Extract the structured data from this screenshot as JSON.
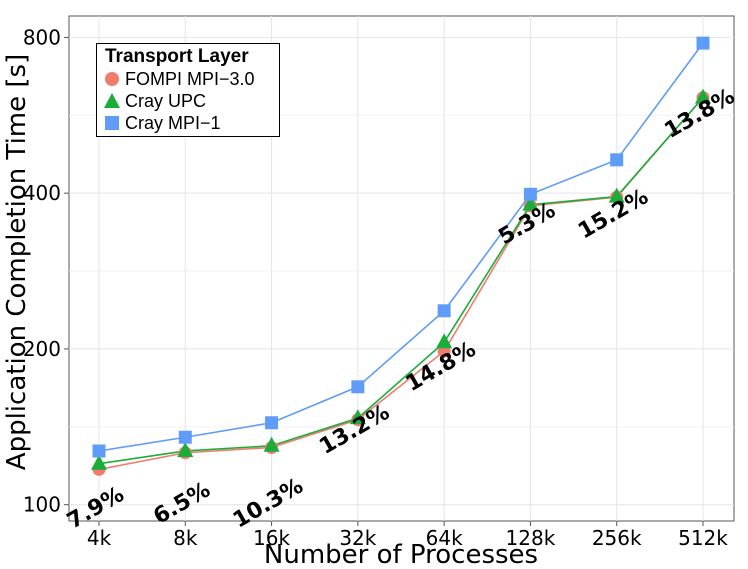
{
  "chart_data": {
    "type": "line",
    "title": "",
    "xlabel": "Number of Processes",
    "ylabel": "Application Completion Time [s]",
    "y_scale": "log",
    "ylim": [
      93,
      880
    ],
    "yticks": [
      100,
      200,
      400,
      800
    ],
    "categories": [
      "4k",
      "8k",
      "16k",
      "32k",
      "64k",
      "128k",
      "256k",
      "512k"
    ],
    "grid": true,
    "legend": {
      "title": "Transport Layer",
      "placement": "top-left"
    },
    "series": [
      {
        "name": "FOMPI MPI−3.0",
        "color": "#f07c6e",
        "marker": "circle",
        "values": [
          117,
          126,
          129,
          146,
          198,
          378,
          393,
          612
        ]
      },
      {
        "name": "Cray UPC",
        "color": "#1aad3a",
        "marker": "triangle",
        "values": [
          120,
          127,
          130,
          147,
          206,
          380,
          394,
          612
        ]
      },
      {
        "name": "Cray MPI−1",
        "color": "#5f9cf7",
        "marker": "square",
        "values": [
          127,
          135,
          144,
          169,
          237,
          398,
          464,
          780
        ]
      }
    ],
    "annotations": [
      {
        "category": "4k",
        "text": "7.9%",
        "y": 96
      },
      {
        "category": "8k",
        "text": "6.5%",
        "y": 98
      },
      {
        "category": "16k",
        "text": "10.3%",
        "y": 98
      },
      {
        "category": "32k",
        "text": "13.2%",
        "y": 136
      },
      {
        "category": "64k",
        "text": "14.8%",
        "y": 180
      },
      {
        "category": "128k",
        "text": "5.3%",
        "y": 340
      },
      {
        "category": "256k",
        "text": "15.2%",
        "y": 355
      },
      {
        "category": "512k",
        "text": "13.8%",
        "y": 555
      }
    ]
  }
}
